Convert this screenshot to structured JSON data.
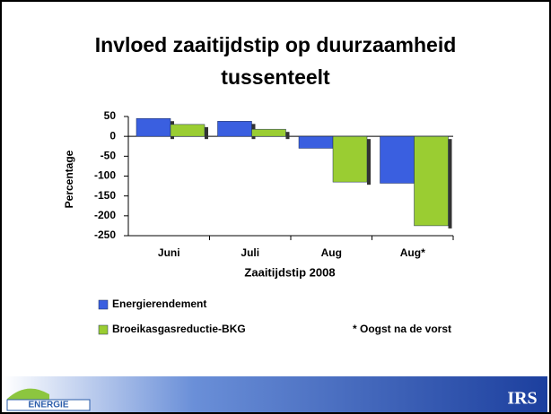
{
  "chart_data": {
    "type": "bar",
    "title": "Invloed zaaitijdstip op duurzaamheid",
    "title_line2": "tussenteelt",
    "y_label": "Percentage",
    "x_label": "Zaaitijdstip 2008",
    "categories": [
      "Juni",
      "Juli",
      "Aug",
      "Aug*"
    ],
    "series": [
      {
        "name": "Energierendement",
        "color": "#3a5fe0",
        "values": [
          45,
          38,
          -30,
          -118
        ]
      },
      {
        "name": "Broeikasgasreductie-BKG",
        "color": "#9acd32",
        "values": [
          30,
          18,
          -115,
          -225
        ]
      }
    ],
    "ylim": [
      -250,
      50
    ],
    "yticks": [
      50,
      0,
      -50,
      -100,
      -150,
      -200,
      -250
    ],
    "annotation": "* Oogst na de vorst"
  },
  "footer": {
    "left_logo": "ENERGIE",
    "right_logo": "IRS"
  }
}
